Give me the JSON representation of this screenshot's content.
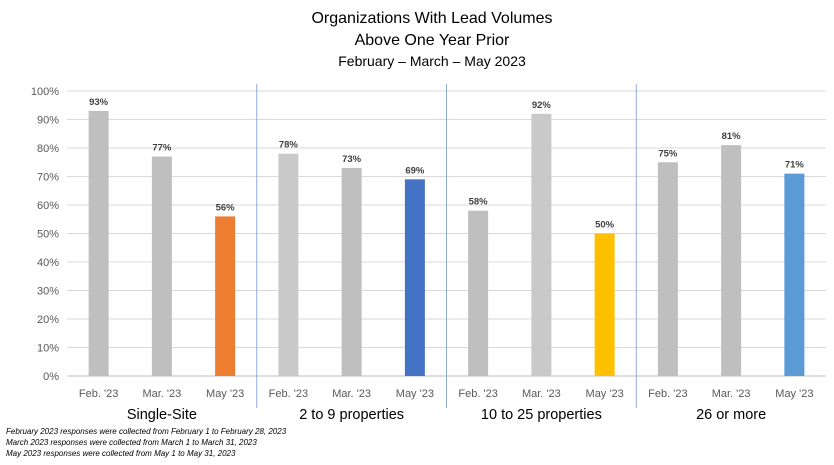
{
  "chart_data": {
    "type": "bar",
    "title": [
      "Organizations With Lead Volumes",
      "Above One Year Prior"
    ],
    "subtitle": "February – March – May 2023",
    "ylim": [
      0,
      100
    ],
    "yticks": [
      "0%",
      "10%",
      "20%",
      "30%",
      "40%",
      "50%",
      "60%",
      "70%",
      "80%",
      "90%",
      "100%"
    ],
    "grid": true,
    "groups": [
      {
        "name": "Single-Site",
        "bars": [
          {
            "label": "Feb. '23",
            "value": 93,
            "text": "93%",
            "color": "#BFBFBF"
          },
          {
            "label": "Mar. '23",
            "value": 77,
            "text": "77%",
            "color": "#BFBFBF"
          },
          {
            "label": "May '23",
            "value": 56,
            "text": "56%",
            "color": "#ED7D31"
          }
        ]
      },
      {
        "name": "2 to 9 properties",
        "bars": [
          {
            "label": "Feb. '23",
            "value": 78,
            "text": "78%",
            "color": "#C9C9C9"
          },
          {
            "label": "Mar. '23",
            "value": 73,
            "text": "73%",
            "color": "#BFBFBF"
          },
          {
            "label": "May '23",
            "value": 69,
            "text": "69%",
            "color": "#4472C4"
          }
        ]
      },
      {
        "name": "10 to 25 properties",
        "bars": [
          {
            "label": "Feb. '23",
            "value": 58,
            "text": "58%",
            "color": "#BFBFBF"
          },
          {
            "label": "Mar. '23",
            "value": 92,
            "text": "92%",
            "color": "#C9C9C9"
          },
          {
            "label": "May '23",
            "value": 50,
            "text": "50%",
            "color": "#FFC000"
          }
        ]
      },
      {
        "name": "26 or more",
        "bars": [
          {
            "label": "Feb. '23",
            "value": 75,
            "text": "75%",
            "color": "#BFBFBF"
          },
          {
            "label": "Mar. '23",
            "value": 81,
            "text": "81%",
            "color": "#BFBFBF"
          },
          {
            "label": "May '23",
            "value": 71,
            "text": "71%",
            "color": "#5B9BD5"
          }
        ]
      }
    ],
    "footnotes": [
      "February 2023 responses were collected from February 1 to February 28, 2023",
      "March 2023 responses were collected from March 1 to March 31, 2023",
      "May 2023 responses were collected from May 1 to May 31, 2023"
    ]
  }
}
